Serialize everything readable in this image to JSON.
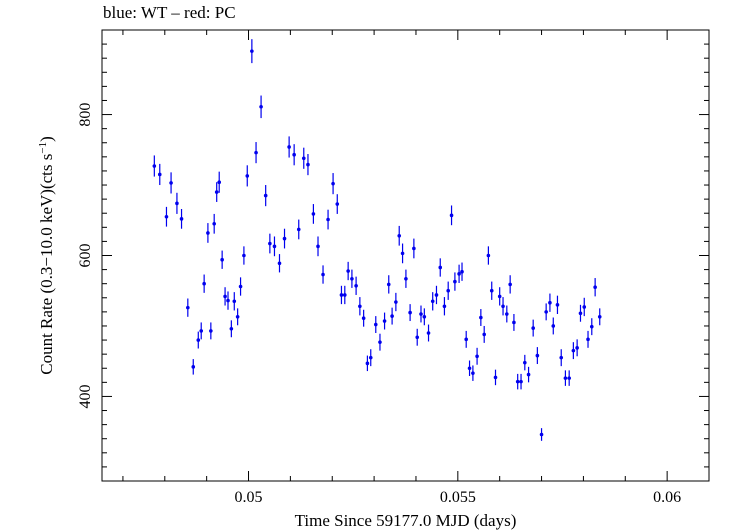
{
  "title": "blue: WT – red: PC",
  "colors": {
    "points": "#0000ee",
    "axes": "#000000"
  },
  "chart_data": {
    "type": "scatter",
    "title": "blue: WT – red: PC",
    "xlabel": "Time Since 59177.0 MJD (days)",
    "ylabel_main": "Count Rate (0.3−10.0 keV)(cts s",
    "ylabel_sup": "−1",
    "ylabel_tail": ")",
    "xlim": [
      0.0465,
      0.061
    ],
    "ylim": [
      280,
      920
    ],
    "x_ticks": [
      0.05,
      0.055,
      0.06
    ],
    "x_tick_labels": [
      "0.05",
      "0.055",
      "0.06"
    ],
    "y_ticks": [
      400,
      600,
      800
    ],
    "y_tick_labels": [
      "400",
      "600",
      "800"
    ],
    "series": [
      {
        "name": "WT",
        "color": "#0000ee",
        "x_err": 3e-05,
        "points": [
          [
            0.04775,
            727,
            15
          ],
          [
            0.04788,
            715,
            15
          ],
          [
            0.04804,
            655,
            14
          ],
          [
            0.04815,
            703,
            15
          ],
          [
            0.04829,
            674,
            15
          ],
          [
            0.0484,
            652,
            14
          ],
          [
            0.04855,
            526,
            13
          ],
          [
            0.04868,
            442,
            11
          ],
          [
            0.0488,
            480,
            12
          ],
          [
            0.04887,
            493,
            12
          ],
          [
            0.04894,
            560,
            13
          ],
          [
            0.04903,
            632,
            14
          ],
          [
            0.0491,
            493,
            12
          ],
          [
            0.04918,
            645,
            14
          ],
          [
            0.04924,
            690,
            14
          ],
          [
            0.0493,
            704,
            15
          ],
          [
            0.04937,
            594,
            13
          ],
          [
            0.04944,
            542,
            13
          ],
          [
            0.04951,
            536,
            13
          ],
          [
            0.04959,
            496,
            12
          ],
          [
            0.04966,
            535,
            13
          ],
          [
            0.04974,
            513,
            12
          ],
          [
            0.04981,
            556,
            13
          ],
          [
            0.04989,
            600,
            13
          ],
          [
            0.04997,
            713,
            15
          ],
          [
            0.05008,
            890,
            17
          ],
          [
            0.05018,
            746,
            15
          ],
          [
            0.0503,
            811,
            16
          ],
          [
            0.05041,
            685,
            15
          ],
          [
            0.05051,
            617,
            14
          ],
          [
            0.05062,
            613,
            14
          ],
          [
            0.05074,
            589,
            13
          ],
          [
            0.05086,
            624,
            14
          ],
          [
            0.05097,
            754,
            15
          ],
          [
            0.05109,
            743,
            15
          ],
          [
            0.0512,
            637,
            14
          ],
          [
            0.05132,
            738,
            15
          ],
          [
            0.05142,
            729,
            15
          ],
          [
            0.05155,
            659,
            14
          ],
          [
            0.05166,
            613,
            14
          ],
          [
            0.05178,
            573,
            13
          ],
          [
            0.0519,
            651,
            14
          ],
          [
            0.05202,
            702,
            15
          ],
          [
            0.05212,
            673,
            14
          ],
          [
            0.05222,
            544,
            13
          ],
          [
            0.0523,
            544,
            13
          ],
          [
            0.05238,
            578,
            13
          ],
          [
            0.05247,
            567,
            13
          ],
          [
            0.05257,
            557,
            13
          ],
          [
            0.05266,
            528,
            13
          ],
          [
            0.05275,
            511,
            12
          ],
          [
            0.05284,
            447,
            11
          ],
          [
            0.05292,
            455,
            12
          ],
          [
            0.05304,
            502,
            12
          ],
          [
            0.05314,
            477,
            12
          ],
          [
            0.05325,
            507,
            12
          ],
          [
            0.05335,
            559,
            13
          ],
          [
            0.05343,
            514,
            12
          ],
          [
            0.05352,
            534,
            13
          ],
          [
            0.0536,
            628,
            14
          ],
          [
            0.05368,
            603,
            14
          ],
          [
            0.05376,
            567,
            13
          ],
          [
            0.05386,
            519,
            12
          ],
          [
            0.05395,
            610,
            14
          ],
          [
            0.05403,
            484,
            12
          ],
          [
            0.05412,
            517,
            12
          ],
          [
            0.0542,
            513,
            12
          ],
          [
            0.0543,
            490,
            12
          ],
          [
            0.0544,
            535,
            13
          ],
          [
            0.05449,
            544,
            13
          ],
          [
            0.05458,
            583,
            13
          ],
          [
            0.05468,
            528,
            13
          ],
          [
            0.05477,
            550,
            13
          ],
          [
            0.05485,
            657,
            14
          ],
          [
            0.05493,
            563,
            13
          ],
          [
            0.05503,
            574,
            13
          ],
          [
            0.0551,
            577,
            13
          ],
          [
            0.0552,
            481,
            12
          ],
          [
            0.05528,
            440,
            11
          ],
          [
            0.05536,
            433,
            11
          ],
          [
            0.05546,
            457,
            12
          ],
          [
            0.05555,
            512,
            12
          ],
          [
            0.05563,
            488,
            12
          ],
          [
            0.05573,
            600,
            13
          ],
          [
            0.05581,
            550,
            13
          ],
          [
            0.0559,
            427,
            11
          ],
          [
            0.056,
            542,
            13
          ],
          [
            0.05608,
            528,
            13
          ],
          [
            0.05617,
            517,
            12
          ],
          [
            0.05625,
            559,
            13
          ],
          [
            0.05634,
            505,
            12
          ],
          [
            0.05643,
            421,
            11
          ],
          [
            0.05651,
            421,
            11
          ],
          [
            0.0566,
            448,
            11
          ],
          [
            0.05669,
            431,
            11
          ],
          [
            0.0568,
            497,
            12
          ],
          [
            0.0569,
            458,
            12
          ],
          [
            0.057,
            346,
            9
          ],
          [
            0.05711,
            520,
            12
          ],
          [
            0.0572,
            533,
            13
          ],
          [
            0.05728,
            500,
            12
          ],
          [
            0.05738,
            530,
            13
          ],
          [
            0.05747,
            455,
            12
          ],
          [
            0.05757,
            426,
            11
          ],
          [
            0.05766,
            426,
            11
          ],
          [
            0.05776,
            465,
            12
          ],
          [
            0.05785,
            469,
            12
          ],
          [
            0.05793,
            518,
            12
          ],
          [
            0.05802,
            527,
            13
          ],
          [
            0.05811,
            481,
            12
          ],
          [
            0.0582,
            499,
            12
          ],
          [
            0.05828,
            555,
            13
          ],
          [
            0.05839,
            513,
            12
          ]
        ]
      }
    ]
  }
}
